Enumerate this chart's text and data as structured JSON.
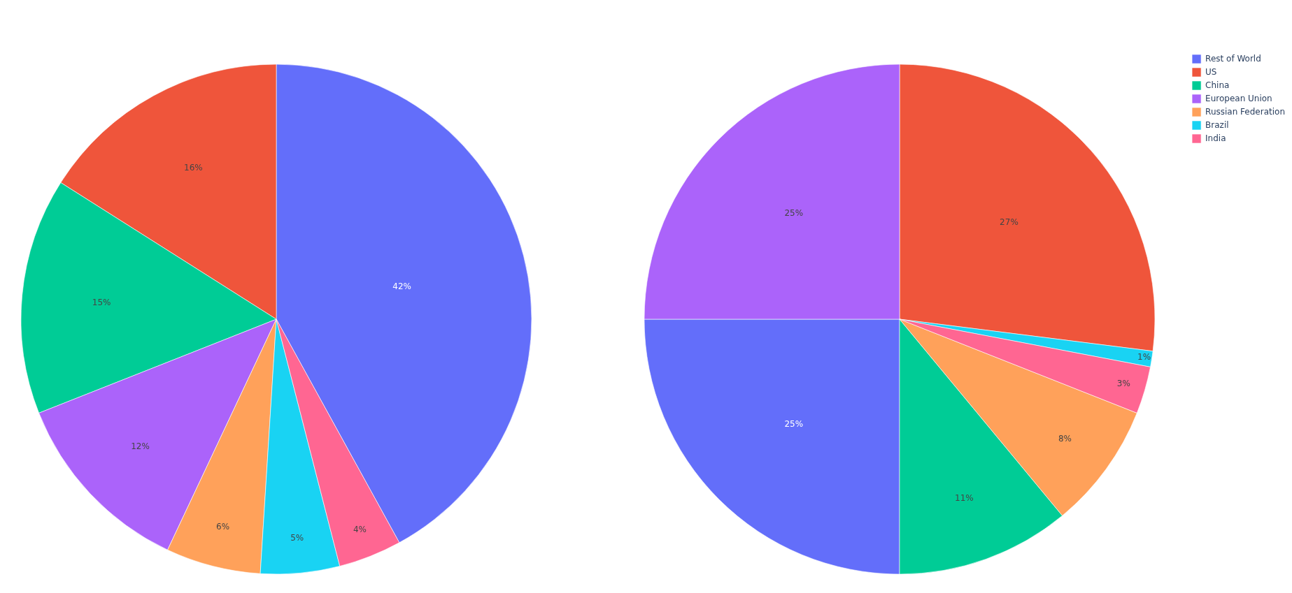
{
  "chart_data": {
    "type": "pie",
    "categories": [
      "Rest of World",
      "US",
      "China",
      "European Union",
      "Russian Federation",
      "Brazil",
      "India"
    ],
    "colors": [
      "#636efa",
      "#ef553b",
      "#00cc96",
      "#ab63fa",
      "#ffa15a",
      "#19d3f3",
      "#ff6692"
    ],
    "legend": "top right",
    "series": [
      {
        "values": [
          42,
          16,
          15,
          12,
          6,
          5,
          4
        ],
        "value_labels": [
          "42%",
          "16%",
          "15%",
          "12%",
          "6%",
          "5%",
          "4%"
        ]
      },
      {
        "values": [
          25,
          27,
          11,
          25,
          8,
          1,
          3
        ],
        "value_labels": [
          "25%",
          "27%",
          "11%",
          "25%",
          "8%",
          "1%",
          "3%"
        ]
      }
    ]
  }
}
